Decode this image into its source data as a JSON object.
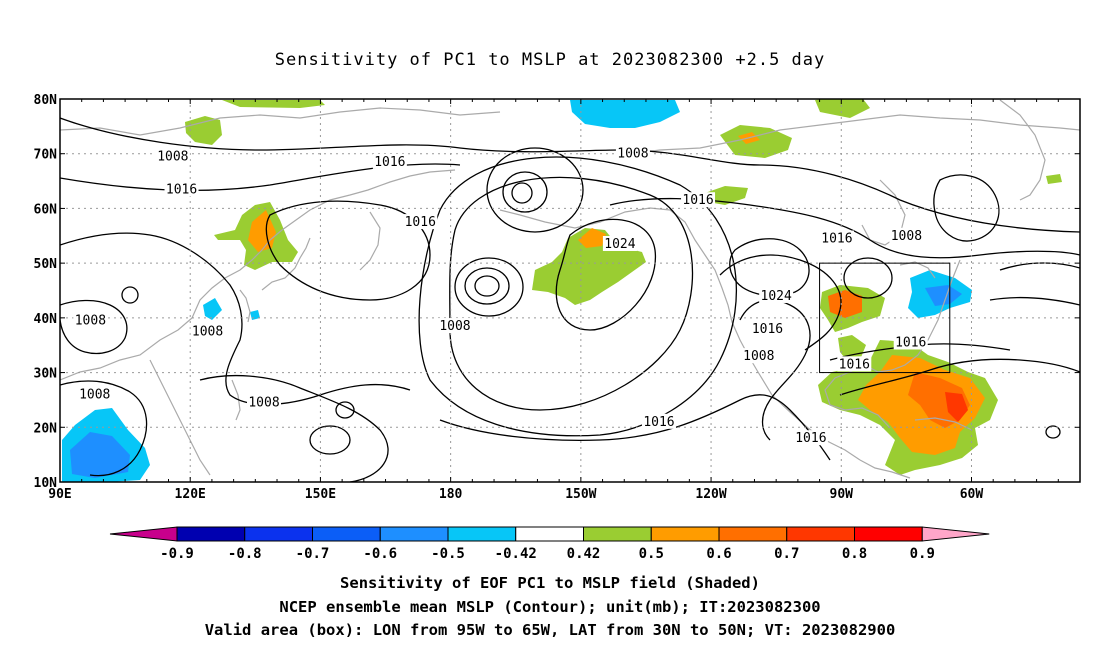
{
  "title": "Sensitivity of PC1 to MSLP at 2023082300 +2.5 day",
  "map": {
    "lat_ticks": [
      "80N",
      "70N",
      "60N",
      "50N",
      "40N",
      "30N",
      "20N",
      "10N"
    ],
    "lon_ticks": [
      "90E",
      "120E",
      "150E",
      "180",
      "150W",
      "120W",
      "90W",
      "60W"
    ],
    "contour_labels": [
      {
        "text": "1008",
        "lon": 116,
        "lat": 69.5
      },
      {
        "text": "1016",
        "lon": 118,
        "lat": 63.5
      },
      {
        "text": "1016",
        "lon": 166,
        "lat": 68.5
      },
      {
        "text": "1008",
        "lon": 222,
        "lat": 70.0
      },
      {
        "text": "1016",
        "lon": 237,
        "lat": 61.5
      },
      {
        "text": "1016",
        "lon": 173,
        "lat": 57.5
      },
      {
        "text": "1024",
        "lon": 219,
        "lat": 53.5
      },
      {
        "text": "1016",
        "lon": 269,
        "lat": 54.5
      },
      {
        "text": "1008",
        "lon": 285,
        "lat": 55.0
      },
      {
        "text": "1024",
        "lon": 255,
        "lat": 44.0
      },
      {
        "text": "1016",
        "lon": 253,
        "lat": 38.0
      },
      {
        "text": "1008",
        "lon": 251,
        "lat": 33.0
      },
      {
        "text": "1016",
        "lon": 273,
        "lat": 31.5
      },
      {
        "text": "1016",
        "lon": 286,
        "lat": 35.5
      },
      {
        "text": "1008",
        "lon": 97,
        "lat": 39.5
      },
      {
        "text": "1008",
        "lon": 124,
        "lat": 37.5
      },
      {
        "text": "1008",
        "lon": 181,
        "lat": 38.5
      },
      {
        "text": "1008",
        "lon": 98,
        "lat": 26.0
      },
      {
        "text": "1008",
        "lon": 137,
        "lat": 24.5
      },
      {
        "text": "1016",
        "lon": 228,
        "lat": 21.0
      },
      {
        "text": "1016",
        "lon": 263,
        "lat": 18.0
      }
    ],
    "valid_box": {
      "lon_min": 265,
      "lon_max": 295,
      "lat_min": 30,
      "lat_max": 50
    }
  },
  "colorbar": {
    "labels": [
      "-0.9",
      "-0.8",
      "-0.7",
      "-0.6",
      "-0.5",
      "-0.42",
      "0.42",
      "0.5",
      "0.6",
      "0.7",
      "0.8",
      "0.9"
    ],
    "colors": [
      "#0000b0",
      "#0b32ee",
      "#0b5ef7",
      "#1e8fff",
      "#07c6f7",
      "#ffffff",
      "#9acd32",
      "#ff9c00",
      "#ff6f00",
      "#ff3700",
      "#ff0000"
    ],
    "low_end_color": "#c8008c",
    "high_end_color": "#ffa6c9"
  },
  "captions": [
    "Sensitivity of EOF PC1 to MSLP field (Shaded)",
    "NCEP ensemble mean MSLP (Contour); unit(mb); IT:2023082300",
    "Valid area (box): LON from 95W to 65W, LAT from 30N to 50N; VT: 2023082900"
  ]
}
